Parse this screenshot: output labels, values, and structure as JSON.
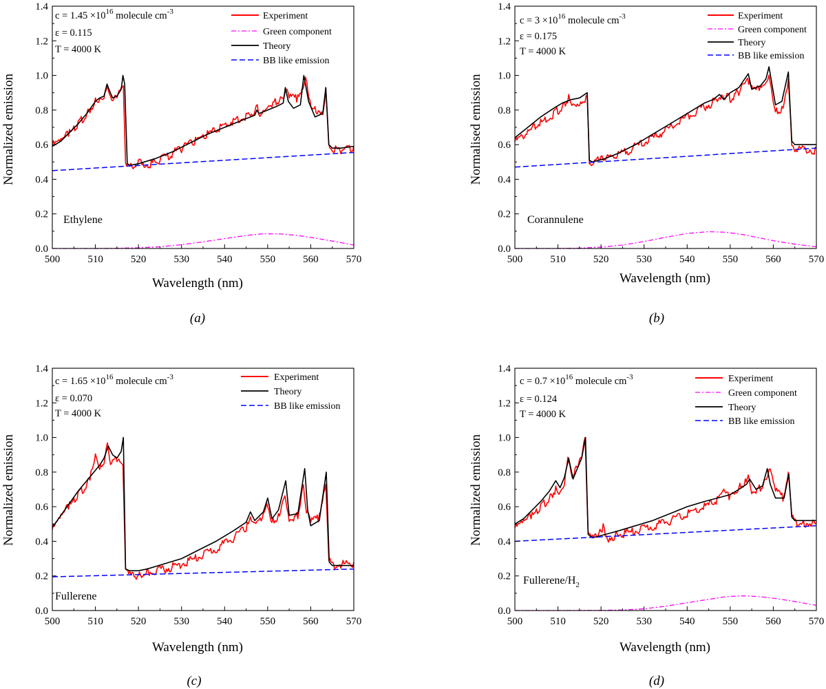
{
  "figure": {
    "panels": [
      {
        "caption": "(a)",
        "sample": "Ethylene",
        "conc_label": "c = 1.45 ×10",
        "conc_exp": "16",
        "conc_unit": " molecule cm",
        "conc_unit_exp": "-3",
        "epsilon_label": "ε = 0.115",
        "temp_label": "T = 4000 K",
        "legend": [
          "Experiment",
          "Green component",
          "Theory",
          "BB like emission"
        ]
      },
      {
        "caption": "(b)",
        "sample": "Corannulene",
        "conc_label": "c = 3 ×10",
        "conc_exp": "16",
        "conc_unit": " molecule cm",
        "conc_unit_exp": "-3",
        "epsilon_label": "ε = 0.175",
        "temp_label": "T = 4000 K",
        "legend": [
          "Experiment",
          "Green component",
          "Theory",
          "BB like emission"
        ]
      },
      {
        "caption": "(c)",
        "sample": "Fullerene",
        "conc_label": "c = 1.65 ×10",
        "conc_exp": "16",
        "conc_unit": " molecule cm",
        "conc_unit_exp": "-3",
        "epsilon_label": "ε = 0.070",
        "temp_label": "T = 4000 K",
        "legend": [
          "Experiment",
          "Theory",
          "BB like emission"
        ]
      },
      {
        "caption": "(d)",
        "sample": "Fullerene/H",
        "sample_sub": "2",
        "conc_label": "c = 0.7 ×10",
        "conc_exp": "16",
        "conc_unit": " molecule cm",
        "conc_unit_exp": "-3",
        "epsilon_label": "ε = 0.124",
        "temp_label": "T = 4000 K",
        "legend": [
          "Experiment",
          "Green component",
          "Theory",
          "BB like emission"
        ]
      }
    ]
  },
  "chart_data": [
    {
      "type": "line",
      "title": "(a) Ethylene",
      "xlabel": "Wavelength (nm)",
      "ylabel": "Normalized emission",
      "xlim": [
        500,
        570
      ],
      "ylim": [
        0.0,
        1.4
      ],
      "xticks": [
        "500",
        "510",
        "520",
        "530",
        "540",
        "550",
        "560",
        "570"
      ],
      "yticks": [
        "0.0",
        "0.2",
        "0.4",
        "0.6",
        "0.8",
        "1.0",
        "1.2",
        "1.4"
      ],
      "colors": {
        "experiment": "#ff0000",
        "theory": "#000000",
        "green": "#ff00ff",
        "bb": "#0000ff"
      },
      "series": [
        {
          "name": "Experiment",
          "x": [
            500,
            502,
            504,
            506,
            508,
            510,
            511,
            512,
            512.7,
            513.3,
            514,
            515,
            516,
            516.5,
            517,
            518,
            520,
            520.6,
            521.5,
            524,
            527,
            530,
            533,
            536,
            539,
            542,
            545,
            547,
            547.6,
            548.2,
            550,
            552,
            553.5,
            554.2,
            555,
            557,
            558.2,
            558.8,
            559.6,
            561,
            562.8,
            563.5,
            564.2,
            565,
            567,
            570
          ],
          "y": [
            0.61,
            0.63,
            0.68,
            0.73,
            0.79,
            0.86,
            0.88,
            0.9,
            0.96,
            0.92,
            0.88,
            0.89,
            0.92,
            0.94,
            0.49,
            0.48,
            0.5,
            0.53,
            0.49,
            0.51,
            0.55,
            0.59,
            0.63,
            0.67,
            0.71,
            0.75,
            0.78,
            0.8,
            0.83,
            0.8,
            0.84,
            0.86,
            0.88,
            0.95,
            0.88,
            0.88,
            0.92,
            1.0,
            0.87,
            0.82,
            0.8,
            0.93,
            0.62,
            0.58,
            0.58,
            0.59
          ]
        },
        {
          "name": "Green component",
          "x": [
            500,
            505,
            510,
            515,
            520,
            525,
            530,
            535,
            540,
            545,
            549,
            553,
            557,
            561,
            565,
            570
          ],
          "y": [
            0,
            0,
            0,
            0.001,
            0.004,
            0.01,
            0.022,
            0.038,
            0.057,
            0.075,
            0.085,
            0.084,
            0.075,
            0.06,
            0.043,
            0.02
          ]
        },
        {
          "name": "Theory",
          "x": [
            500,
            502,
            504,
            506,
            508,
            510,
            511,
            512,
            512.7,
            513.3,
            514,
            515,
            516,
            516.4,
            516.8,
            517.4,
            518,
            520,
            524,
            528,
            532,
            536,
            540,
            544,
            547,
            547.5,
            548,
            550,
            552,
            553.6,
            554.1,
            554.8,
            556,
            557.6,
            558.4,
            559.5,
            561,
            562.8,
            563.5,
            564.2,
            565,
            567,
            570
          ],
          "y": [
            0.59,
            0.62,
            0.67,
            0.72,
            0.78,
            0.85,
            0.87,
            0.88,
            0.95,
            0.91,
            0.87,
            0.88,
            0.92,
            1.0,
            0.95,
            0.49,
            0.48,
            0.49,
            0.52,
            0.56,
            0.61,
            0.66,
            0.7,
            0.74,
            0.77,
            0.8,
            0.78,
            0.8,
            0.82,
            0.84,
            0.93,
            0.85,
            0.81,
            0.83,
            1.0,
            0.85,
            0.76,
            0.78,
            0.93,
            0.6,
            0.58,
            0.58,
            0.59
          ]
        },
        {
          "name": "BB like emission",
          "x": [
            500,
            570
          ],
          "y": [
            0.45,
            0.555
          ]
        }
      ]
    },
    {
      "type": "line",
      "title": "(b) Corannulene",
      "xlabel": "Wavelength (nm)",
      "ylabel": "Normalised emission",
      "xlim": [
        500,
        570
      ],
      "ylim": [
        0.0,
        1.4
      ],
      "xticks": [
        "500",
        "510",
        "520",
        "530",
        "540",
        "550",
        "560",
        "570"
      ],
      "yticks": [
        "0.0",
        "0.2",
        "0.4",
        "0.6",
        "0.8",
        "1.0",
        "1.2",
        "1.4"
      ],
      "colors": {
        "experiment": "#ff0000",
        "theory": "#000000",
        "green": "#ff00ff",
        "bb": "#0000ff"
      },
      "series": [
        {
          "name": "Experiment",
          "x": [
            500,
            503,
            506,
            509,
            511,
            512.5,
            513.5,
            515,
            516.8,
            517.3,
            518,
            521,
            524,
            528,
            532,
            536,
            540,
            544,
            547,
            548,
            550,
            552,
            554.3,
            555,
            557,
            558.4,
            559,
            560.5,
            562,
            563.5,
            564.3,
            565,
            570
          ],
          "y": [
            0.63,
            0.68,
            0.74,
            0.79,
            0.83,
            0.88,
            0.85,
            0.86,
            0.88,
            0.52,
            0.51,
            0.53,
            0.55,
            0.6,
            0.65,
            0.71,
            0.77,
            0.83,
            0.87,
            0.9,
            0.88,
            0.92,
            0.98,
            0.93,
            0.93,
            0.96,
            1.0,
            0.8,
            0.82,
            0.98,
            0.62,
            0.59,
            0.58
          ]
        },
        {
          "name": "Green component",
          "x": [
            500,
            505,
            510,
            515,
            520,
            525,
            530,
            535,
            540,
            545,
            549,
            553,
            557,
            561,
            565,
            570
          ],
          "y": [
            0,
            0,
            0,
            0.002,
            0.008,
            0.02,
            0.04,
            0.065,
            0.087,
            0.097,
            0.094,
            0.08,
            0.06,
            0.04,
            0.025,
            0.01
          ]
        },
        {
          "name": "Theory",
          "x": [
            500,
            503,
            506,
            509,
            511,
            513,
            515,
            516.8,
            517.3,
            518,
            521,
            524,
            528,
            532,
            536,
            540,
            544,
            546,
            547.5,
            548.5,
            550,
            552,
            554.2,
            555,
            557,
            558.3,
            559,
            560.5,
            562,
            563.5,
            564.3,
            565,
            570
          ],
          "y": [
            0.64,
            0.7,
            0.76,
            0.81,
            0.84,
            0.86,
            0.87,
            0.9,
            0.51,
            0.5,
            0.52,
            0.55,
            0.6,
            0.66,
            0.72,
            0.78,
            0.84,
            0.86,
            0.89,
            0.86,
            0.9,
            0.93,
            1.01,
            0.92,
            0.94,
            0.98,
            1.05,
            0.83,
            0.85,
            1.02,
            0.62,
            0.6,
            0.6
          ]
        },
        {
          "name": "BB like emission",
          "x": [
            500,
            570
          ],
          "y": [
            0.47,
            0.58
          ]
        }
      ]
    },
    {
      "type": "line",
      "title": "(c) Fullerene",
      "xlabel": "Wavelength (nm)",
      "ylabel": "Normalized emission",
      "xlim": [
        500,
        570
      ],
      "ylim": [
        0.0,
        1.4
      ],
      "xticks": [
        "500",
        "510",
        "520",
        "530",
        "540",
        "550",
        "560",
        "570"
      ],
      "yticks": [
        "0.0",
        "0.2",
        "0.4",
        "0.6",
        "0.8",
        "1.0",
        "1.2",
        "1.4"
      ],
      "colors": {
        "experiment": "#ff0000",
        "theory": "#000000",
        "bb": "#0000ff"
      },
      "series": [
        {
          "name": "Experiment",
          "x": [
            500,
            502,
            504,
            506,
            508,
            509,
            510,
            511,
            512,
            512.8,
            513.5,
            515,
            516.4,
            517,
            518,
            520,
            522,
            526,
            530,
            534,
            538,
            542,
            545,
            546,
            547,
            549,
            549.8,
            551,
            552.5,
            554,
            555,
            557,
            558.3,
            559,
            560,
            562,
            563.5,
            564.2,
            565,
            570
          ],
          "y": [
            0.48,
            0.55,
            0.62,
            0.68,
            0.74,
            0.8,
            0.92,
            0.85,
            0.87,
            1.0,
            0.87,
            0.88,
            0.84,
            0.24,
            0.22,
            0.21,
            0.23,
            0.25,
            0.28,
            0.32,
            0.37,
            0.43,
            0.49,
            0.53,
            0.5,
            0.56,
            0.62,
            0.52,
            0.56,
            0.7,
            0.54,
            0.56,
            0.74,
            0.6,
            0.52,
            0.55,
            0.73,
            0.3,
            0.28,
            0.28
          ]
        },
        {
          "name": "Theory",
          "x": [
            500,
            502,
            504,
            506,
            508,
            510,
            511,
            512,
            513,
            514,
            515,
            516,
            516.5,
            517,
            518,
            520,
            522,
            526,
            530,
            534,
            538,
            542,
            545,
            546,
            547,
            549,
            550,
            551,
            552.5,
            554.2,
            555,
            557,
            558.6,
            559.3,
            560,
            562,
            563.6,
            564.3,
            565,
            570
          ],
          "y": [
            0.48,
            0.55,
            0.62,
            0.69,
            0.75,
            0.81,
            0.84,
            0.88,
            0.95,
            0.9,
            0.88,
            0.92,
            1.0,
            0.24,
            0.23,
            0.23,
            0.24,
            0.27,
            0.3,
            0.35,
            0.4,
            0.46,
            0.51,
            0.57,
            0.52,
            0.57,
            0.65,
            0.53,
            0.58,
            0.75,
            0.55,
            0.56,
            0.82,
            0.58,
            0.49,
            0.52,
            0.8,
            0.28,
            0.26,
            0.26
          ]
        },
        {
          "name": "BB like emission",
          "x": [
            500,
            570
          ],
          "y": [
            0.195,
            0.24
          ]
        }
      ]
    },
    {
      "type": "line",
      "title": "(d) Fullerene/H2",
      "xlabel": "Wavelength (nm)",
      "ylabel": "Normalized emission",
      "xlim": [
        500,
        570
      ],
      "ylim": [
        0.0,
        1.4
      ],
      "xticks": [
        "500",
        "510",
        "520",
        "530",
        "540",
        "550",
        "560",
        "570"
      ],
      "yticks": [
        "0.0",
        "0.2",
        "0.4",
        "0.6",
        "0.8",
        "1.0",
        "1.2",
        "1.4"
      ],
      "colors": {
        "experiment": "#ff0000",
        "theory": "#000000",
        "green": "#ff00ff",
        "bb": "#0000ff"
      },
      "series": [
        {
          "name": "Experiment",
          "x": [
            500,
            502,
            504,
            506,
            508,
            509.5,
            510.5,
            511.5,
            512.3,
            513.3,
            514.5,
            515.5,
            516.3,
            517,
            518,
            519.5,
            520.5,
            521.5,
            524,
            528,
            532,
            536,
            540,
            544,
            547,
            548.5,
            550,
            552,
            553.5,
            554.2,
            555,
            557,
            558.4,
            559,
            560.5,
            562.5,
            563.5,
            564.3,
            565,
            567,
            570
          ],
          "y": [
            0.49,
            0.52,
            0.56,
            0.61,
            0.66,
            0.71,
            0.7,
            0.76,
            0.91,
            0.8,
            0.85,
            0.9,
            1.0,
            0.45,
            0.43,
            0.45,
            0.49,
            0.43,
            0.45,
            0.47,
            0.5,
            0.53,
            0.57,
            0.61,
            0.65,
            0.7,
            0.67,
            0.72,
            0.76,
            0.82,
            0.7,
            0.72,
            0.77,
            0.85,
            0.7,
            0.66,
            0.8,
            0.55,
            0.53,
            0.52,
            0.51
          ]
        },
        {
          "name": "Green component",
          "x": [
            500,
            510,
            520,
            525,
            530,
            535,
            540,
            545,
            549,
            553,
            557,
            561,
            565,
            570
          ],
          "y": [
            0,
            0,
            0.001,
            0.003,
            0.01,
            0.025,
            0.045,
            0.065,
            0.08,
            0.085,
            0.08,
            0.068,
            0.052,
            0.03
          ]
        },
        {
          "name": "Theory",
          "x": [
            500,
            502,
            504,
            506,
            508,
            509.5,
            510.5,
            511.5,
            512.5,
            513.5,
            514.5,
            515.5,
            516.4,
            517,
            518,
            521,
            524,
            528,
            532,
            536,
            540,
            544,
            547,
            548.5,
            550,
            552,
            553.8,
            554.5,
            556,
            557.5,
            558.6,
            559.3,
            560.5,
            562.5,
            563.6,
            564.3,
            565,
            567,
            570
          ],
          "y": [
            0.5,
            0.53,
            0.58,
            0.63,
            0.69,
            0.75,
            0.71,
            0.77,
            0.88,
            0.76,
            0.82,
            0.88,
            1.0,
            0.44,
            0.42,
            0.44,
            0.46,
            0.49,
            0.52,
            0.56,
            0.6,
            0.63,
            0.65,
            0.66,
            0.67,
            0.7,
            0.73,
            0.76,
            0.7,
            0.72,
            0.82,
            0.73,
            0.65,
            0.65,
            0.79,
            0.54,
            0.52,
            0.52,
            0.52
          ]
        },
        {
          "name": "BB like emission",
          "x": [
            500,
            570
          ],
          "y": [
            0.4,
            0.49
          ]
        }
      ]
    }
  ]
}
